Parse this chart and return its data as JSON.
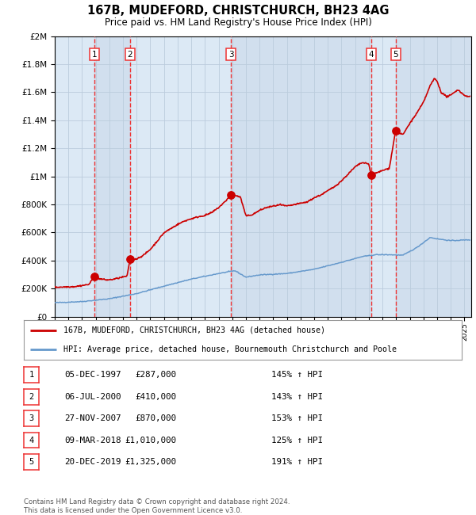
{
  "title": "167B, MUDEFORD, CHRISTCHURCH, BH23 4AG",
  "subtitle": "Price paid vs. HM Land Registry's House Price Index (HPI)",
  "legend_label_red": "167B, MUDEFORD, CHRISTCHURCH, BH23 4AG (detached house)",
  "legend_label_blue": "HPI: Average price, detached house, Bournemouth Christchurch and Poole",
  "footer": "Contains HM Land Registry data © Crown copyright and database right 2024.\nThis data is licensed under the Open Government Licence v3.0.",
  "transactions": [
    {
      "num": 1,
      "date": "05-DEC-1997",
      "year": 1997.92,
      "price": 287000,
      "pct": "145%",
      "dir": "↑"
    },
    {
      "num": 2,
      "date": "06-JUL-2000",
      "year": 2000.51,
      "price": 410000,
      "pct": "143%",
      "dir": "↑"
    },
    {
      "num": 3,
      "date": "27-NOV-2007",
      "year": 2007.9,
      "price": 870000,
      "pct": "153%",
      "dir": "↑"
    },
    {
      "num": 4,
      "date": "09-MAR-2018",
      "year": 2018.18,
      "price": 1010000,
      "pct": "125%",
      "dir": "↑"
    },
    {
      "num": 5,
      "date": "20-DEC-2019",
      "year": 2019.96,
      "price": 1325000,
      "pct": "191%",
      "dir": "↑"
    }
  ],
  "table_rows": [
    [
      "1",
      "05-DEC-1997",
      "£287,000",
      "145% ↑ HPI"
    ],
    [
      "2",
      "06-JUL-2000",
      "£410,000",
      "143% ↑ HPI"
    ],
    [
      "3",
      "27-NOV-2007",
      "£870,000",
      "153% ↑ HPI"
    ],
    [
      "4",
      "09-MAR-2018",
      "£1,010,000",
      "125% ↑ HPI"
    ],
    [
      "5",
      "20-DEC-2019",
      "£1,325,000",
      "191% ↑ HPI"
    ]
  ],
  "ylim": [
    0,
    2000000
  ],
  "xlim_start": 1995.0,
  "xlim_end": 2025.5,
  "red_color": "#cc0000",
  "blue_color": "#6699cc",
  "marker_color": "#cc0000",
  "vline_color": "#ee3333",
  "band_color": "#c8d8ea",
  "grid_color": "#bbccdd",
  "plot_bg_color": "#dce9f5"
}
